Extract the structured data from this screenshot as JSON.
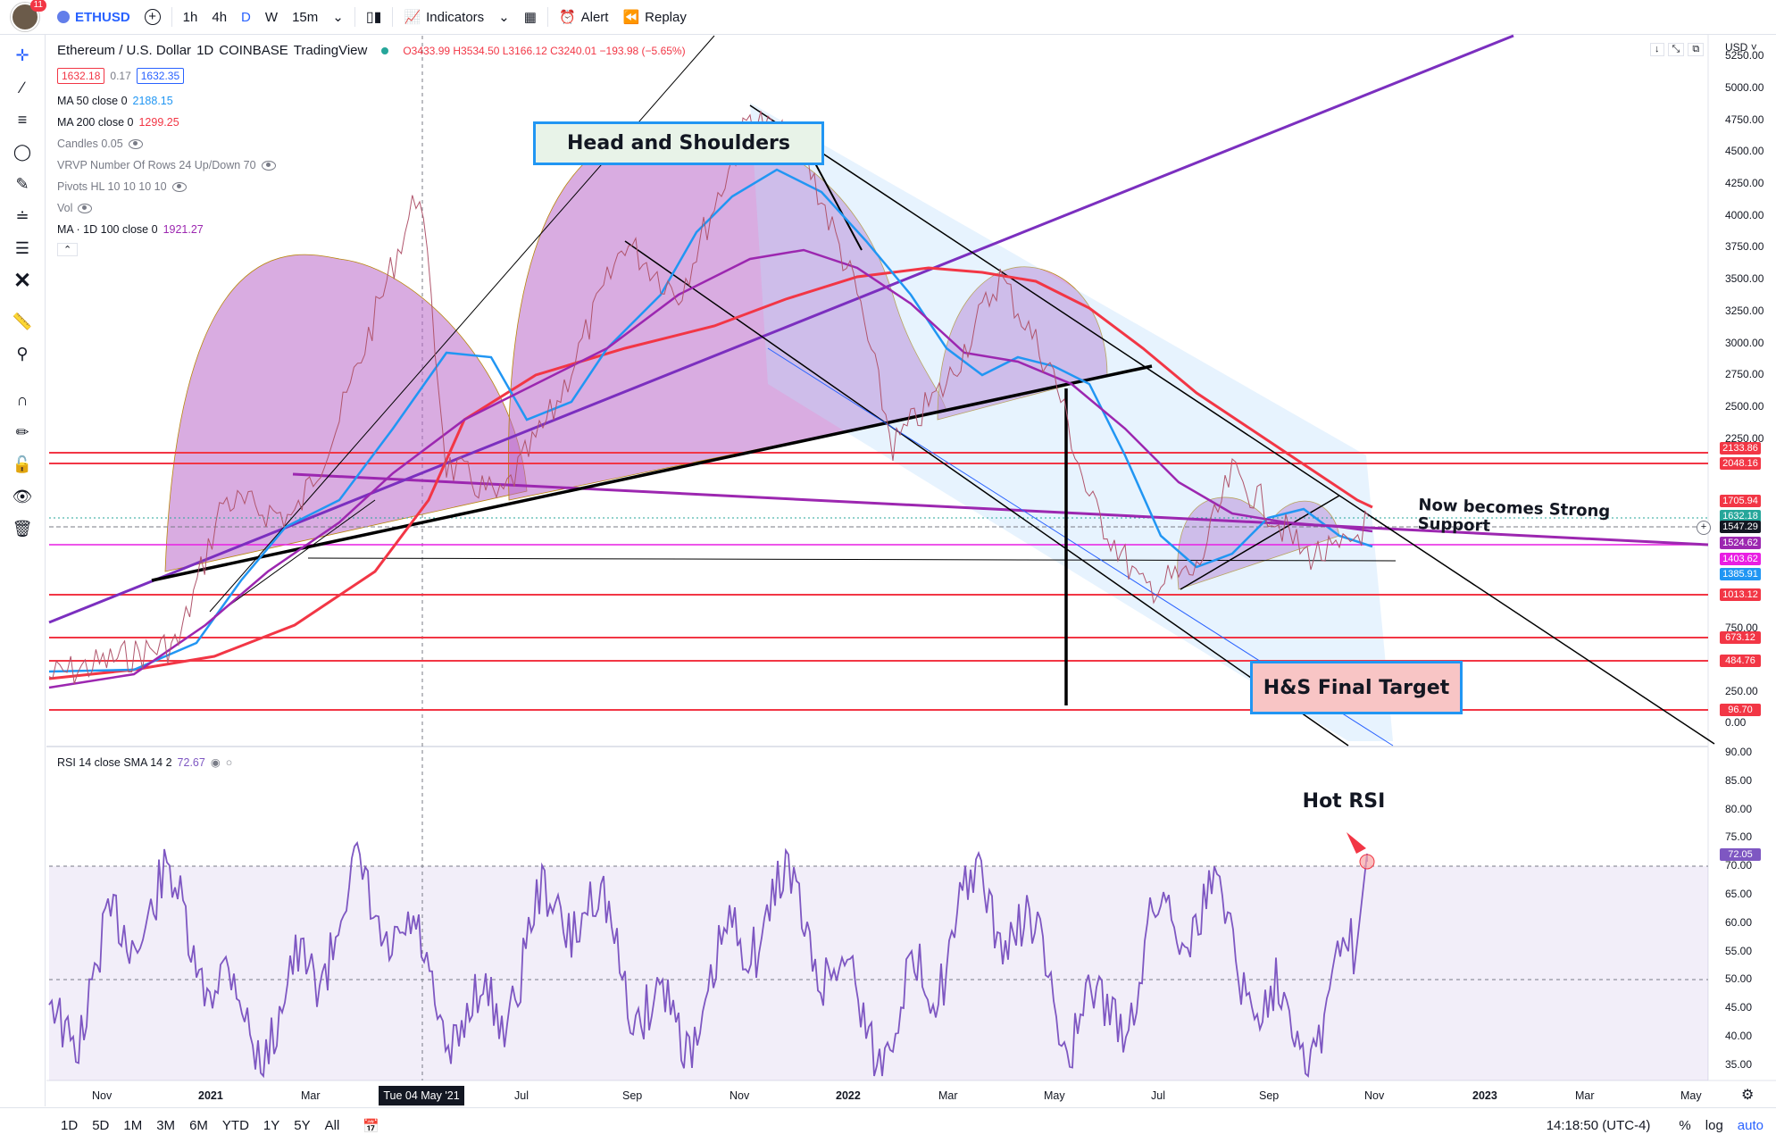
{
  "topbar": {
    "notifications": "11",
    "symbol": "ETHUSD",
    "intervals": [
      "1h",
      "4h",
      "D",
      "W",
      "15m"
    ],
    "indicators_label": "Indicators",
    "alert_label": "Alert",
    "replay_label": "Replay"
  },
  "legend": {
    "title": "Ethereum / U.S. Dollar",
    "interval": "1D",
    "exchange": "COINBASE",
    "provider": "TradingView",
    "ohlc": "O3433.99 H3534.50 L3166.12 C3240.01 −193.98 (−5.65%)",
    "bid": "1632.18",
    "spread": "0.17",
    "ask": "1632.35",
    "ma50_label": "MA 50 close 0",
    "ma50_value": "2188.15",
    "ma200_label": "MA 200 close 0",
    "ma200_value": "1299.25",
    "candles_label": "Candles 0.05",
    "vrvp_label": "VRVP Number Of Rows 24 Up/Down 70",
    "pivots_label": "Pivots HL 10 10 10 10",
    "vol_label": "Vol",
    "ma100_label": "MA · 1D 100 close 0",
    "ma100_value": "1921.27",
    "rsi_label": "RSI 14 close SMA 14 2",
    "rsi_value": "72.67"
  },
  "annotations": {
    "head_shoulders": "Head and Shoulders",
    "final_target": "H&S Final Target",
    "support": "Now becomes Strong Support",
    "hot_rsi": "Hot RSI"
  },
  "price_axis": {
    "currency": "USD",
    "ticks": [
      "5250.00",
      "5000.00",
      "4750.00",
      "4500.00",
      "4250.00",
      "4000.00",
      "3750.00",
      "3500.00",
      "3250.00",
      "3000.00",
      "2750.00",
      "2500.00",
      "2250.00",
      "750.00",
      "500.00",
      "250.00",
      "0.00"
    ],
    "labels": [
      {
        "text": "2133.86",
        "color": "#f23645"
      },
      {
        "text": "2048.16",
        "color": "#f23645"
      },
      {
        "text": "1705.94",
        "color": "#f23645"
      },
      {
        "text": "1632.18",
        "color": "#26a69a"
      },
      {
        "text": "1547.29",
        "color": "#131722"
      },
      {
        "text": "1524.62",
        "color": "#9c27b0"
      },
      {
        "text": "1403.62",
        "color": "#e91ee3"
      },
      {
        "text": "1385.91",
        "color": "#2196f3"
      },
      {
        "text": "1013.12",
        "color": "#f23645"
      },
      {
        "text": "673.12",
        "color": "#f23645"
      },
      {
        "text": "484.76",
        "color": "#f23645"
      },
      {
        "text": "96.70",
        "color": "#f23645"
      }
    ]
  },
  "rsi_axis": {
    "ticks": [
      "90.00",
      "85.00",
      "80.00",
      "75.00",
      "70.00",
      "65.00",
      "60.00",
      "55.00",
      "50.00",
      "45.00",
      "40.00",
      "35.00"
    ],
    "current": "72.05"
  },
  "time_axis": {
    "ticks": [
      "Nov",
      "2021",
      "Mar",
      "Jul",
      "Sep",
      "Nov",
      "2022",
      "Mar",
      "May",
      "Jul",
      "Sep",
      "Nov",
      "2023",
      "Mar",
      "May"
    ],
    "cursor_date": "Tue 04 May '21"
  },
  "bottombar": {
    "ranges": [
      "1D",
      "5D",
      "1M",
      "3M",
      "6M",
      "YTD",
      "1Y",
      "5Y",
      "All"
    ],
    "clock": "14:18:50 (UTC-4)",
    "percent": "%",
    "log": "log",
    "auto": "auto"
  },
  "colors": {
    "ma50": "#2196f3",
    "ma200": "#f23645",
    "ma100": "#9c27b0",
    "rsi": "#7e57c2",
    "shape_fill": "#ba68c8",
    "level_line": "#f23645"
  }
}
